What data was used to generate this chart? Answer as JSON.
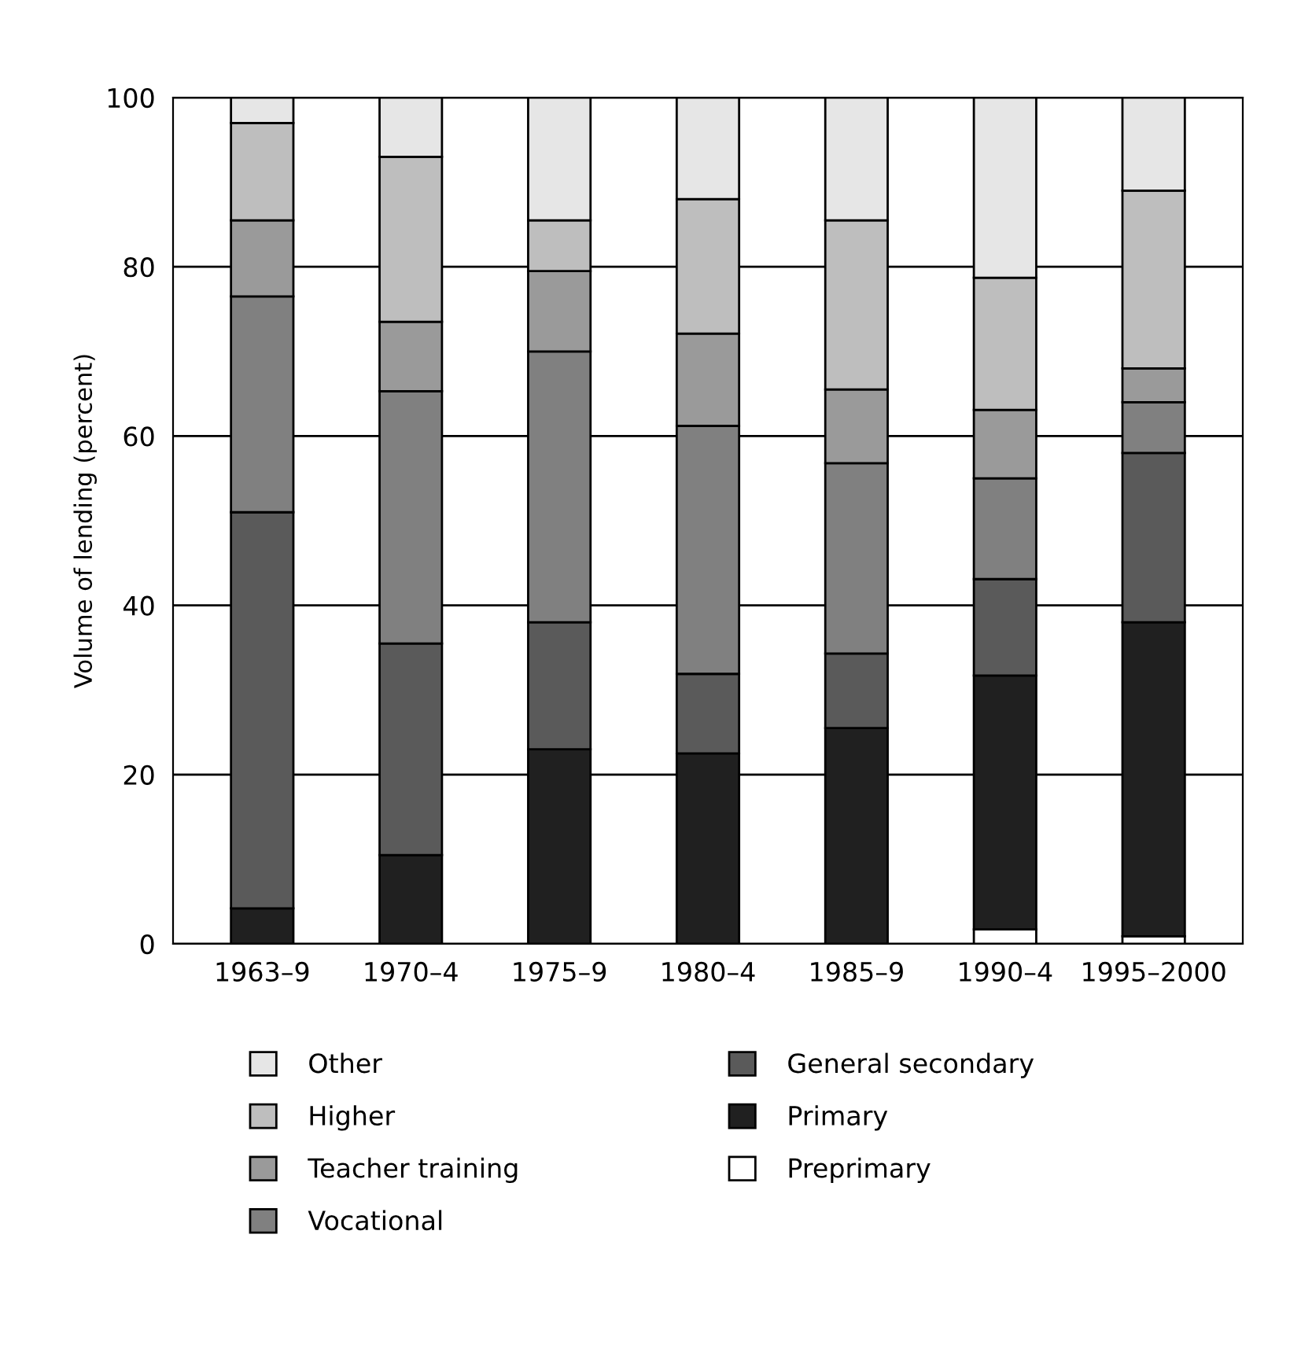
{
  "chart_data": {
    "type": "bar",
    "stacked": true,
    "ylabel": "Volume of lending (percent)",
    "categories": [
      "1963–9",
      "1970–4",
      "1975–9",
      "1980–4",
      "1985–9",
      "1990–4",
      "1995–2000"
    ],
    "series": [
      {
        "name": "Preprimary",
        "color": "#ffffff",
        "values": [
          0,
          0,
          0,
          0,
          0,
          1.7,
          0.9
        ]
      },
      {
        "name": "Primary",
        "color": "#202020",
        "values": [
          4.2,
          10.5,
          23,
          22.5,
          25.5,
          30,
          37.1
        ]
      },
      {
        "name": "General secondary",
        "color": "#5a5a5a",
        "values": [
          46.8,
          25,
          15,
          9.4,
          8.8,
          11.4,
          20
        ]
      },
      {
        "name": "Vocational",
        "color": "#808080",
        "values": [
          25.5,
          29.8,
          32,
          29.3,
          22.5,
          11.9,
          6
        ]
      },
      {
        "name": "Teacher training",
        "color": "#9a9a9a",
        "values": [
          9,
          8.2,
          9.5,
          10.9,
          8.7,
          8.1,
          4
        ]
      },
      {
        "name": "Higher",
        "color": "#bebebe",
        "values": [
          11.5,
          19.5,
          6,
          15.9,
          20,
          15.6,
          21
        ]
      },
      {
        "name": "Other",
        "color": "#e6e6e6",
        "values": [
          3,
          7,
          14.5,
          12,
          14.5,
          21.3,
          11
        ]
      }
    ],
    "ylim": [
      0,
      100
    ],
    "yticks": [
      0,
      20,
      40,
      60,
      80,
      100
    ],
    "grid": "y",
    "legend": "bottom"
  }
}
